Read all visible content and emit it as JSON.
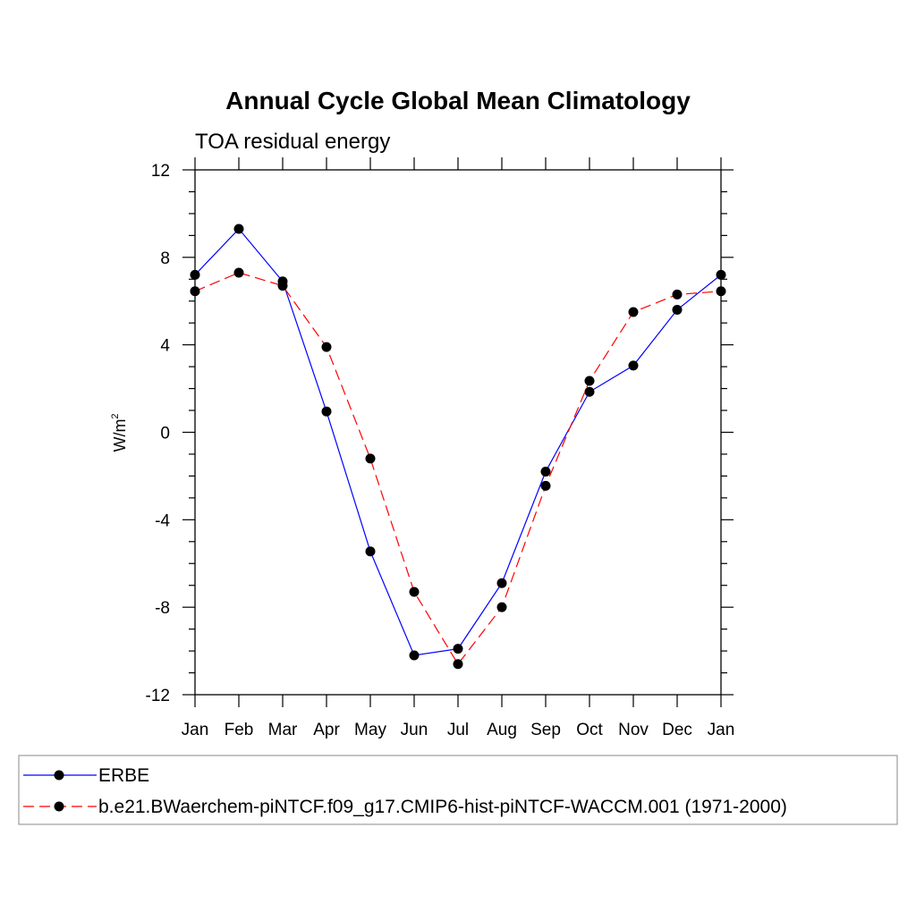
{
  "chart_data": {
    "type": "line",
    "title": "Annual Cycle Global Mean Climatology",
    "subtitle": "TOA residual energy",
    "ylabel": "W/m",
    "ylabel_sup": "2",
    "xlabel": "",
    "categories": [
      "Jan",
      "Feb",
      "Mar",
      "Apr",
      "May",
      "Jun",
      "Jul",
      "Aug",
      "Sep",
      "Oct",
      "Nov",
      "Dec",
      "Jan"
    ],
    "ylim": [
      -12,
      12
    ],
    "yticks": [
      -12,
      -8,
      -4,
      0,
      4,
      8,
      12
    ],
    "ytick_labels": [
      "-12",
      "-8",
      "-4",
      "0",
      "4",
      "8",
      "12"
    ],
    "grid": false,
    "legend_position": "bottom",
    "series": [
      {
        "name": "ERBE",
        "color": "#0000ff",
        "dash": "solid",
        "marker_color": "#000000",
        "values": [
          7.2,
          9.3,
          6.9,
          0.95,
          -5.45,
          -10.2,
          -9.9,
          -6.9,
          -1.8,
          1.85,
          3.05,
          5.6,
          7.2
        ]
      },
      {
        "name": "b.e21.BWaerchem-piNTCF.f09_g17.CMIP6-hist-piNTCF-WACCM.001 (1971-2000)",
        "color": "#ff0000",
        "dash": "dashed",
        "marker_color": "#000000",
        "values": [
          6.45,
          7.3,
          6.7,
          3.9,
          -1.2,
          -7.3,
          -10.6,
          -8.0,
          -2.45,
          2.35,
          5.5,
          6.3,
          6.45
        ]
      }
    ]
  }
}
